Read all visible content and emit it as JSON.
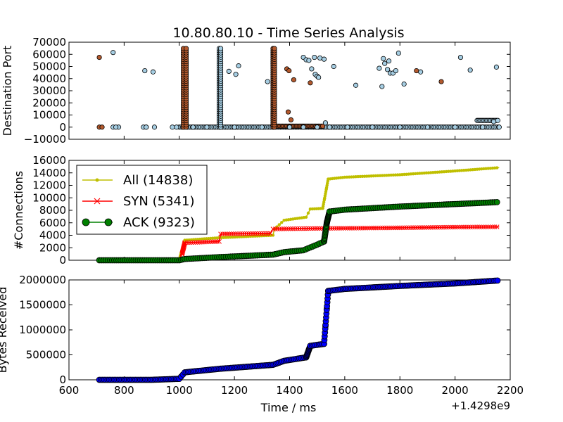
{
  "chart_data": [
    {
      "type": "scatter",
      "title": "10.80.80.10 - Time Series Analysis",
      "xlabel": "",
      "ylabel": "Destination Port",
      "xlim": [
        600,
        2200
      ],
      "ylim": [
        -10000,
        70000
      ],
      "yticks": [
        -10000,
        0,
        10000,
        20000,
        30000,
        40000,
        50000,
        60000,
        70000
      ],
      "ytick_labels": [
        "−10000",
        "0",
        "10000",
        "20000",
        "30000",
        "40000",
        "50000",
        "60000",
        "70000"
      ],
      "series": [
        {
          "color": "#a6cee3",
          "points": [
            [
              760,
              61500
            ],
            [
              875,
              46500
            ],
            [
              905,
              45500
            ],
            [
              1180,
              46000
            ],
            [
              1205,
              43500
            ],
            [
              1215,
              50500
            ],
            [
              1320,
              37500
            ],
            [
              1450,
              57500
            ],
            [
              1460,
              55500
            ],
            [
              1470,
              55000
            ],
            [
              1480,
              48000
            ],
            [
              1490,
              57500
            ],
            [
              1493,
              43500
            ],
            [
              1500,
              42000
            ],
            [
              1505,
              41000
            ],
            [
              1510,
              57000
            ],
            [
              1525,
              56000
            ],
            [
              1560,
              50000
            ],
            [
              1640,
              34500
            ],
            [
              1725,
              48500
            ],
            [
              1735,
              33500
            ],
            [
              1740,
              56500
            ],
            [
              1745,
              52500
            ],
            [
              1755,
              47500
            ],
            [
              1760,
              54500
            ],
            [
              1765,
              44500
            ],
            [
              1775,
              44500
            ],
            [
              1785,
              46500
            ],
            [
              1795,
              61000
            ],
            [
              1815,
              35500
            ],
            [
              1875,
              45500
            ],
            [
              2020,
              57500
            ],
            [
              2055,
              47000
            ],
            [
              2150,
              49500
            ],
            [
              2140,
              4500
            ],
            [
              1530,
              3500
            ],
            [
              1545,
              0
            ],
            [
              1610,
              0
            ],
            [
              1700,
              0
            ],
            [
              1800,
              0
            ],
            [
              1900,
              0
            ],
            [
              2000,
              0
            ],
            [
              2100,
              0
            ],
            [
              2160,
              0
            ],
            [
              770,
              0
            ],
            [
              880,
              0
            ],
            [
              1050,
              0
            ],
            [
              1100,
              0
            ],
            [
              1200,
              0
            ],
            [
              1300,
              0
            ],
            [
              1400,
              0
            ],
            [
              1450,
              0
            ],
            [
              1500,
              0
            ]
          ]
        },
        {
          "color": "#b3592d",
          "points": [
            [
              710,
              57500
            ],
            [
              1390,
              48000
            ],
            [
              1398,
              46500
            ],
            [
              1405,
              6000
            ],
            [
              1415,
              39000
            ],
            [
              1475,
              36500
            ],
            [
              1860,
              46500
            ],
            [
              1950,
              37500
            ],
            [
              1395,
              12500
            ]
          ]
        }
      ]
    },
    {
      "type": "line",
      "title": "",
      "xlabel": "",
      "ylabel": "#Connections",
      "xlim": [
        600,
        2200
      ],
      "ylim": [
        0,
        16000
      ],
      "yticks": [
        0,
        2000,
        4000,
        6000,
        8000,
        10000,
        12000,
        14000,
        16000
      ],
      "legend": {
        "placement": "top-left"
      },
      "series": [
        {
          "name": "All (14838)",
          "color": "#bfbf00",
          "marker": "dot",
          "points": [
            [
              710,
              0
            ],
            [
              850,
              0
            ],
            [
              1000,
              100
            ],
            [
              1020,
              3200
            ],
            [
              1145,
              3600
            ],
            [
              1340,
              4000
            ],
            [
              1345,
              5000
            ],
            [
              1380,
              6400
            ],
            [
              1460,
              6900
            ],
            [
              1475,
              8200
            ],
            [
              1520,
              8300
            ],
            [
              1540,
              13000
            ],
            [
              1600,
              13300
            ],
            [
              1800,
              13700
            ],
            [
              2000,
              14300
            ],
            [
              2160,
              14838
            ]
          ]
        },
        {
          "name": "SYN (5341)",
          "color": "#ff0000",
          "marker": "x",
          "points": [
            [
              710,
              0
            ],
            [
              850,
              0
            ],
            [
              1000,
              0
            ],
            [
              1010,
              1000
            ],
            [
              1020,
              2800
            ],
            [
              1145,
              3000
            ],
            [
              1150,
              4200
            ],
            [
              1330,
              4300
            ],
            [
              1340,
              5000
            ],
            [
              1500,
              5100
            ],
            [
              1800,
              5200
            ],
            [
              2000,
              5300
            ],
            [
              2160,
              5341
            ]
          ]
        },
        {
          "name": "ACK (9323)",
          "color": "#008000",
          "marker": "circle",
          "points": [
            [
              710,
              0
            ],
            [
              850,
              0
            ],
            [
              1000,
              0
            ],
            [
              1020,
              200
            ],
            [
              1145,
              500
            ],
            [
              1340,
              900
            ],
            [
              1380,
              1300
            ],
            [
              1450,
              1600
            ],
            [
              1500,
              2500
            ],
            [
              1525,
              3000
            ],
            [
              1535,
              6000
            ],
            [
              1545,
              7800
            ],
            [
              1600,
              8100
            ],
            [
              1800,
              8600
            ],
            [
              2000,
              9000
            ],
            [
              2160,
              9323
            ]
          ]
        }
      ]
    },
    {
      "type": "line",
      "title": "",
      "xlabel": "Time / ms",
      "ylabel": "Bytes Received",
      "xlim": [
        600,
        2200
      ],
      "ylim": [
        0,
        2000000
      ],
      "yticks": [
        0,
        500000,
        1000000,
        1500000,
        2000000
      ],
      "xticks": [
        600,
        800,
        1000,
        1200,
        1400,
        1600,
        1800,
        2000,
        2200
      ],
      "x_offset_label": "+1.4298e9",
      "series": [
        {
          "color": "#0000ff",
          "edge": "#000000",
          "marker": "circle",
          "points": [
            [
              710,
              0
            ],
            [
              800,
              0
            ],
            [
              900,
              0
            ],
            [
              1000,
              20000
            ],
            [
              1020,
              150000
            ],
            [
              1145,
              220000
            ],
            [
              1340,
              300000
            ],
            [
              1380,
              380000
            ],
            [
              1460,
              450000
            ],
            [
              1475,
              680000
            ],
            [
              1525,
              720000
            ],
            [
              1540,
              1780000
            ],
            [
              1600,
              1820000
            ],
            [
              1800,
              1880000
            ],
            [
              2000,
              1930000
            ],
            [
              2160,
              1990000
            ]
          ]
        }
      ]
    }
  ]
}
